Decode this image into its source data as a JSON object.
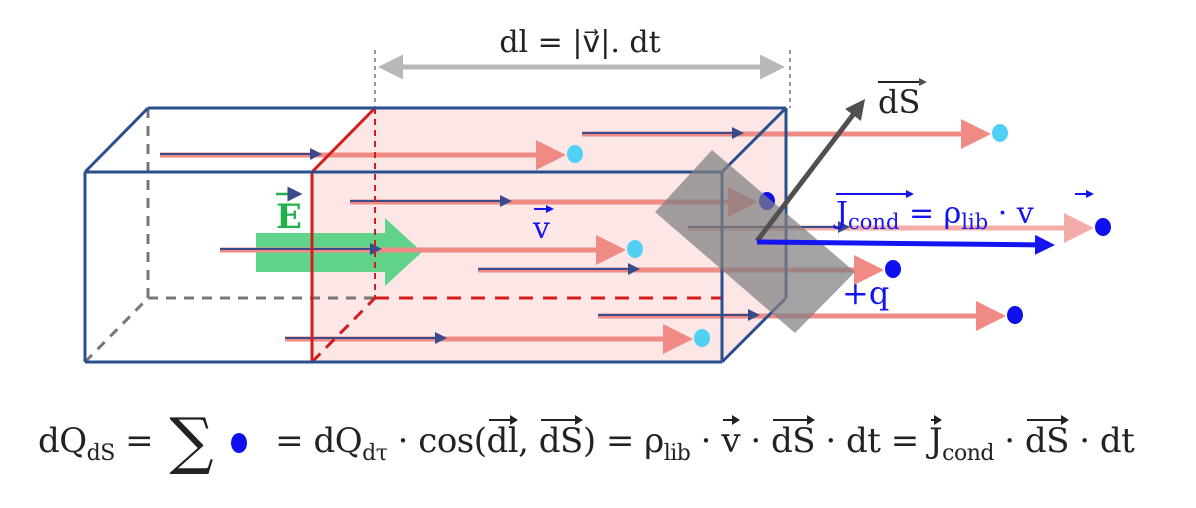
{
  "labels": {
    "dl": "dl = |v⃗|. dt",
    "E": "E",
    "v": "v",
    "dS": "dS",
    "J": "Jcond",
    "J_sub_main": "J",
    "J_sub": "cond",
    "J_eq": " = ρ",
    "J_eq_sub": "lib",
    "J_eq_tail": " · v",
    "charge": "+q"
  },
  "equation": {
    "p1": "dQ",
    "p1_sub": "dS",
    "p2": " = ",
    "p3": "= dQ",
    "p3_sub": "dτ",
    "p4": " · cos(",
    "p5": "dl",
    "p6": ", ",
    "p7": "dS",
    "p8": ") = ρ",
    "p8_sub": "lib",
    "p9": " · ",
    "p10": "v",
    "p11": " · ",
    "p12": "dS",
    "p13": " · dt = ",
    "p14": "J",
    "p14_sub": "cond",
    "p15": " · ",
    "p16": "dS",
    "p17": " · dt",
    "sigma": "∑"
  },
  "colors": {
    "box_edge": "#2a4f8f",
    "slice_edge": "#d41c1c",
    "slice_fill": "#fde6e6",
    "field": "#4fcf7f",
    "current": "#1414f0",
    "charge_path": "#f08a84",
    "charge_in": "#50d0f5",
    "charge_out": "#1010ee",
    "surface": "#808080"
  }
}
